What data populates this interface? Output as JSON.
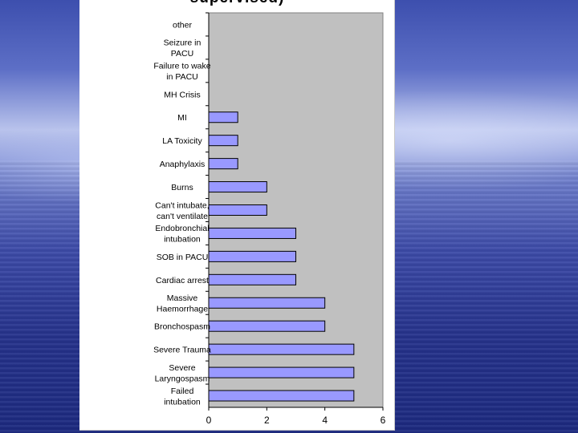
{
  "chart_data": {
    "type": "bar",
    "orientation": "horizontal",
    "title": "supervised)",
    "categories": [
      "other",
      "Seizure in PACU",
      "Failure to wake in PACU",
      "MH Crisis",
      "MI",
      "LA Toxicity",
      "Anaphylaxis",
      "Burns",
      "Can't intubate, can't ventilate",
      "Endobronchial intubation",
      "SOB in PACU",
      "Cardiac arrest",
      "Massive Haemorrhage",
      "Bronchospasm",
      "Severe Trauma",
      "Severe Laryngospasm",
      "Failed intubation"
    ],
    "category_lines": [
      [
        "other"
      ],
      [
        "Seizure in",
        "PACU"
      ],
      [
        "Failure to wake",
        "in PACU"
      ],
      [
        "MH Crisis"
      ],
      [
        "MI"
      ],
      [
        "LA Toxicity"
      ],
      [
        "Anaphylaxis"
      ],
      [
        "Burns"
      ],
      [
        "Can't intubate,",
        "can't ventilate"
      ],
      [
        "Endobronchial",
        "intubation"
      ],
      [
        "SOB in PACU"
      ],
      [
        "Cardiac arrest"
      ],
      [
        "Massive",
        "Haemorrhage"
      ],
      [
        "Bronchospasm"
      ],
      [
        "Severe Trauma"
      ],
      [
        "Severe",
        "Laryngospasm"
      ],
      [
        "Failed",
        "intubation"
      ]
    ],
    "values": [
      0,
      0,
      0,
      0,
      1,
      1,
      1,
      2,
      2,
      3,
      3,
      3,
      4,
      4,
      5,
      5,
      5
    ],
    "xlim": [
      0,
      6
    ],
    "xticks": [
      0,
      2,
      4,
      6
    ],
    "xlabel": "",
    "ylabel": "",
    "grid": false,
    "legend": "none",
    "colors": {
      "bar_fill": "#9999ff",
      "bar_stroke": "#000000",
      "plot_background": "#c0c0c0"
    }
  }
}
